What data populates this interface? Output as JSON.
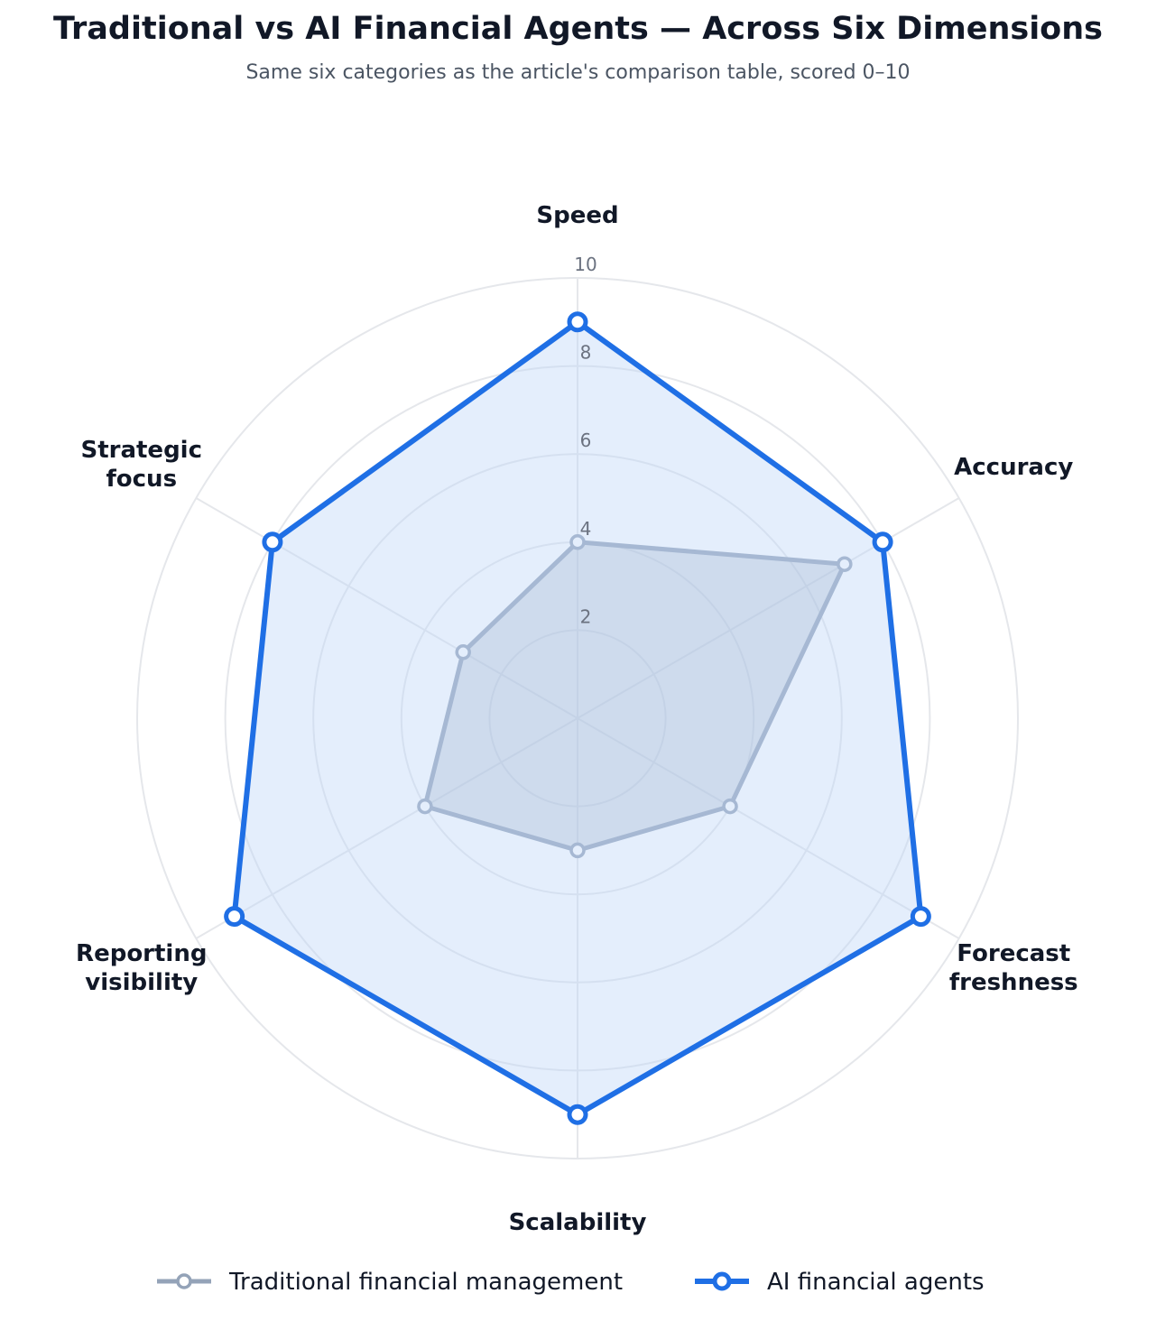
{
  "title": "Traditional vs AI Financial Agents — Across Six Dimensions",
  "subtitle": "Same six categories as the article's comparison table, scored 0–10",
  "chart_data": {
    "type": "radar",
    "axes": [
      "Speed",
      "Accuracy",
      "Forecast freshness",
      "Scalability",
      "Reporting visibility",
      "Strategic focus"
    ],
    "r_range": [
      0,
      10
    ],
    "r_ticks": [
      "2",
      "4",
      "6",
      "8",
      "10"
    ],
    "grid": true,
    "legend_position": "bottom",
    "series": [
      {
        "name": "Traditional financial management",
        "values": [
          4,
          7,
          4,
          3,
          4,
          3
        ],
        "color": "#94a3b8",
        "fill": "#94a3b8"
      },
      {
        "name": "AI financial agents",
        "values": [
          9,
          8,
          9,
          9,
          9,
          8
        ],
        "color": "#1f6fe5",
        "fill": "#bfd7f7"
      }
    ]
  }
}
